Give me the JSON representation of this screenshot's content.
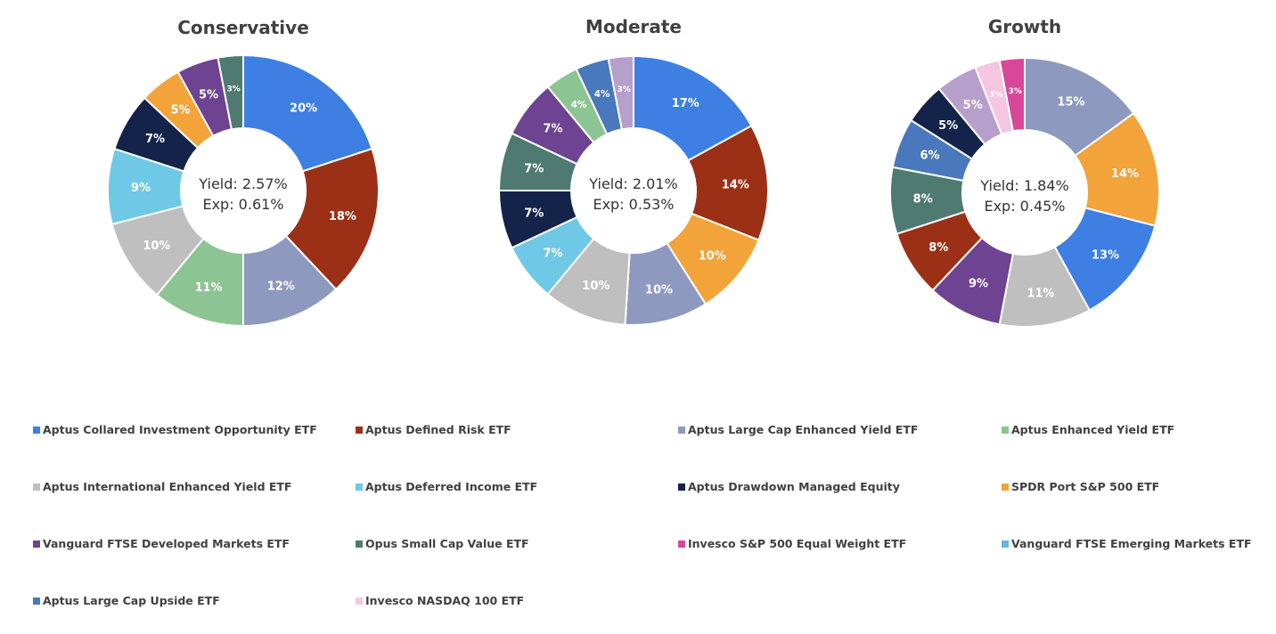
{
  "legend": [
    {
      "label": "Aptus Collared Investment Opportunity ETF",
      "color": "#3D7FE3"
    },
    {
      "label": "Aptus Defined Risk ETF",
      "color": "#9B3016"
    },
    {
      "label": "Aptus Large Cap Enhanced Yield ETF",
      "color": "#8E99BF"
    },
    {
      "label": "Aptus Enhanced Yield ETF",
      "color": "#8DC493"
    },
    {
      "label": "Aptus International Enhanced Yield ETF",
      "color": "#BFBFBF"
    },
    {
      "label": "Aptus Deferred Income ETF",
      "color": "#6FC8E6"
    },
    {
      "label": "Aptus Drawdown Managed Equity",
      "color": "#14234A"
    },
    {
      "label": "SPDR Port S&P 500 ETF",
      "color": "#F2A33A"
    },
    {
      "label": "Vanguard FTSE Developed Markets ETF",
      "color": "#6E4391"
    },
    {
      "label": "Opus Small Cap Value ETF",
      "color": "#4F7A72"
    },
    {
      "label": "Invesco S&P 500 Equal Weight ETF",
      "color": "#D9479A"
    },
    {
      "label": "Vanguard FTSE Emerging Markets ETF",
      "color": "#5FB8E0"
    },
    {
      "label": "Aptus Large Cap Upside ETF",
      "color": "#4A78BD"
    },
    {
      "label": "Invesco NASDAQ 100 ETF",
      "color": "#F5C6E0"
    }
  ],
  "chart_data": [
    {
      "type": "pie",
      "title": "Conservative",
      "center": {
        "yield": "Yield: 2.57%",
        "exp": "Exp: 0.61%"
      },
      "slices": [
        {
          "name": "Aptus Collared Investment Opportunity ETF",
          "value": 20,
          "label": "20%"
        },
        {
          "name": "Aptus Defined Risk ETF",
          "value": 18,
          "label": "18%"
        },
        {
          "name": "Aptus Large Cap Enhanced Yield ETF",
          "value": 12,
          "label": "12%"
        },
        {
          "name": "Aptus Enhanced Yield ETF",
          "value": 11,
          "label": "11%"
        },
        {
          "name": "Aptus International Enhanced Yield ETF",
          "value": 10,
          "label": "10%"
        },
        {
          "name": "Aptus Deferred Income ETF",
          "value": 9,
          "label": "9%"
        },
        {
          "name": "Aptus Drawdown Managed Equity",
          "value": 7,
          "label": "7%"
        },
        {
          "name": "SPDR Port S&P 500 ETF",
          "value": 5,
          "label": "5%"
        },
        {
          "name": "Vanguard FTSE Developed Markets ETF",
          "value": 5,
          "label": "5%"
        },
        {
          "name": "Opus Small Cap Value ETF",
          "value": 3,
          "label": "3%"
        }
      ]
    },
    {
      "type": "pie",
      "title": "Moderate",
      "center": {
        "yield": "Yield: 2.01%",
        "exp": "Exp: 0.53%"
      },
      "slices": [
        {
          "name": "Aptus Collared Investment Opportunity ETF",
          "value": 17,
          "label": "17%"
        },
        {
          "name": "Aptus Defined Risk ETF",
          "value": 14,
          "label": "14%"
        },
        {
          "name": "SPDR Port S&P 500 ETF",
          "value": 10,
          "label": "10%"
        },
        {
          "name": "Aptus Large Cap Enhanced Yield ETF",
          "value": 10,
          "label": "10%"
        },
        {
          "name": "Aptus International Enhanced Yield ETF",
          "value": 10,
          "label": "10%"
        },
        {
          "name": "Aptus Deferred Income ETF",
          "value": 7,
          "label": "7%"
        },
        {
          "name": "Aptus Drawdown Managed Equity",
          "value": 7,
          "label": "7%"
        },
        {
          "name": "Opus Small Cap Value ETF",
          "value": 7,
          "label": "7%"
        },
        {
          "name": "Vanguard FTSE Developed Markets ETF",
          "value": 7,
          "label": "7%"
        },
        {
          "name": "Aptus Enhanced Yield ETF",
          "value": 4,
          "label": "4%"
        },
        {
          "name": "Aptus Large Cap Upside ETF",
          "value": 4,
          "label": "4%"
        },
        {
          "name": "Vanguard FTSE Developed Markets ETF",
          "value": 3,
          "label": "3%",
          "color": "#B79FCB"
        }
      ]
    },
    {
      "type": "pie",
      "title": "Growth",
      "center": {
        "yield": "Yield: 1.84%",
        "exp": "Exp: 0.45%"
      },
      "slices": [
        {
          "name": "Aptus Large Cap Enhanced Yield ETF",
          "value": 15,
          "label": "15%"
        },
        {
          "name": "SPDR Port S&P 500 ETF",
          "value": 14,
          "label": "14%"
        },
        {
          "name": "Aptus Collared Investment Opportunity ETF",
          "value": 13,
          "label": "13%"
        },
        {
          "name": "Aptus International Enhanced Yield ETF",
          "value": 11,
          "label": "11%"
        },
        {
          "name": "Vanguard FTSE Developed Markets ETF",
          "value": 9,
          "label": "9%"
        },
        {
          "name": "Aptus Defined Risk ETF",
          "value": 8,
          "label": "8%"
        },
        {
          "name": "Opus Small Cap Value ETF",
          "value": 8,
          "label": "8%"
        },
        {
          "name": "Aptus Large Cap Upside ETF",
          "value": 6,
          "label": "6%"
        },
        {
          "name": "Aptus Drawdown Managed Equity",
          "value": 5,
          "label": "5%"
        },
        {
          "name": "Vanguard FTSE Developed Markets ETF",
          "value": 5,
          "label": "5%",
          "color": "#B79FCB"
        },
        {
          "name": "Invesco NASDAQ 100 ETF",
          "value": 3,
          "label": "3%"
        },
        {
          "name": "Invesco S&P 500 Equal Weight ETF",
          "value": 3,
          "label": "3%"
        }
      ]
    }
  ]
}
